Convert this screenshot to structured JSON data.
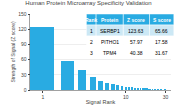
{
  "chart_data": {
    "type": "bar",
    "title": "Human Protein Microarray Specificity Validation",
    "xlabel": "Signal Rank",
    "ylabel": "Strength of Signal (Z score)",
    "x": [
      1,
      2,
      3,
      4,
      5,
      6,
      7,
      8,
      9,
      10,
      11,
      12,
      13,
      14,
      15,
      16,
      17,
      18,
      19,
      20,
      21,
      22,
      23,
      24,
      25,
      26,
      27,
      28,
      29,
      30
    ],
    "values": [
      123.63,
      57.97,
      40.38,
      25,
      18,
      14,
      11,
      9,
      7.5,
      6.5,
      5.5,
      5,
      4.5,
      4,
      3.8,
      3.5,
      3.2,
      3,
      2.8,
      2.6,
      2.4,
      2.2,
      2.0,
      1.9,
      1.8,
      1.7,
      1.6,
      1.5,
      1.4,
      1.3
    ],
    "color": "#29abe2",
    "log": "x",
    "xlim": [
      0.7,
      35
    ],
    "xticks": [
      1,
      10,
      30
    ],
    "ylim": [
      0,
      150
    ],
    "yticks": [
      0,
      30,
      60,
      90,
      120,
      150
    ],
    "grid": true,
    "table": {
      "headers": [
        "Rank",
        "Protein",
        "Z score",
        "S score"
      ],
      "rows": [
        [
          "1",
          "SERBP1",
          "123.63",
          "65.66"
        ],
        [
          "2",
          "PITHO1",
          "57.97",
          "17.58"
        ],
        [
          "3",
          "TPM4",
          "40.38",
          "31.67"
        ]
      ],
      "color": "#29abe2",
      "colors": [
        "#cce8f5",
        "#ffffff",
        "#ffffff"
      ]
    }
  }
}
